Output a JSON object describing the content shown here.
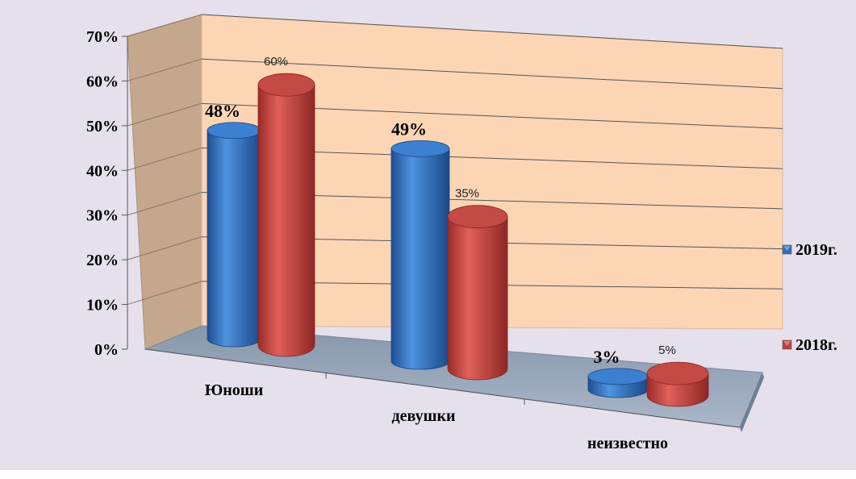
{
  "chart_data": {
    "type": "bar",
    "style": "3d-cylinder",
    "categories": [
      "Юноши",
      "девушки",
      "неизвестно"
    ],
    "series": [
      {
        "name": "2019г.",
        "values": [
          48,
          49,
          3
        ],
        "labels": [
          "48%",
          "49%",
          "3%"
        ],
        "color": "#2f6fbf",
        "label_style": "bold"
      },
      {
        "name": "2018г.",
        "values": [
          60,
          35,
          5
        ],
        "labels": [
          "60%",
          "35%",
          "5%"
        ],
        "color": "#c0403c",
        "label_style": "plain"
      }
    ],
    "y_ticks": [
      "0%",
      "10%",
      "20%",
      "30%",
      "40%",
      "50%",
      "60%",
      "70%"
    ],
    "ylim": [
      0,
      70
    ],
    "grid": true,
    "legend": "right",
    "colors": {
      "background": "#e6e0ec",
      "back_wall": "#fcd5b4",
      "side_wall": "#c4a78d",
      "floor": "#9aaabd"
    }
  }
}
